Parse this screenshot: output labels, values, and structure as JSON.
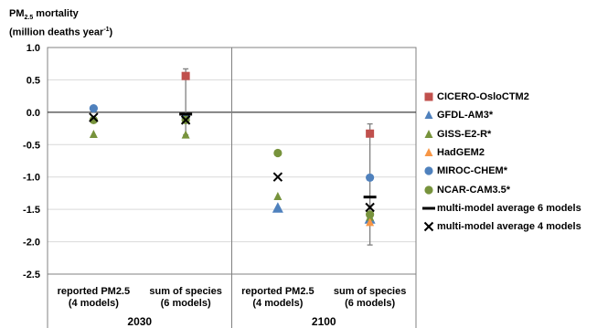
{
  "y_title": {
    "line1_main": "PM",
    "line1_sub": "2.5",
    "line1_rest": " mortality",
    "line2_main": "(million deaths year",
    "line2_sup": "-1",
    "line2_end": ")"
  },
  "chart_data": {
    "type": "scatter",
    "ylim": [
      -2.5,
      1.0
    ],
    "yticks": [
      1.0,
      0.5,
      0.0,
      -0.5,
      -1.0,
      -1.5,
      -2.0,
      -2.5
    ],
    "ytick_labels": [
      "1.0",
      "0.5",
      "0.0",
      "-0.5",
      "-1.0",
      "-1.5",
      "-2.0",
      "-2.5"
    ],
    "groups": [
      {
        "year": "2030",
        "categories": [
          {
            "line1": "reported PM2.5",
            "line2": "(4 models)"
          },
          {
            "line1": "sum of species",
            "line2": "(6 models)"
          }
        ]
      },
      {
        "year": "2100",
        "categories": [
          {
            "line1": "reported PM2.5",
            "line2": "(4 models)"
          },
          {
            "line1": "sum of species",
            "line2": "(6 models)"
          }
        ]
      }
    ],
    "series": [
      {
        "name": "CICERO-OsloCTM2",
        "marker": "square",
        "color": "#c0504d",
        "values": [
          null,
          0.56,
          null,
          -0.33
        ]
      },
      {
        "name": "GFDL-AM3*",
        "marker": "triangle-large",
        "color": "#4f81bd",
        "values": [
          null,
          null,
          -1.48,
          -1.65
        ]
      },
      {
        "name": "GISS-E2-R*",
        "marker": "triangle",
        "color": "#77933c",
        "values": [
          -0.34,
          -0.35,
          -1.3,
          -1.62
        ]
      },
      {
        "name": "HadGEM2",
        "marker": "triangle",
        "color": "#f79646",
        "values": [
          null,
          null,
          null,
          -1.7
        ]
      },
      {
        "name": "MIROC-CHEM*",
        "marker": "circle",
        "color": "#4f81bd",
        "values": [
          0.06,
          -0.08,
          null,
          -1.01
        ]
      },
      {
        "name": "NCAR-CAM3.5*",
        "marker": "circle",
        "color": "#77933c",
        "values": [
          -0.12,
          -0.12,
          -0.63,
          -1.58
        ]
      },
      {
        "name": "multi-model average 6 models",
        "marker": "dash",
        "color": "#000000",
        "values": [
          null,
          -0.03,
          null,
          -1.31
        ],
        "err_high": [
          null,
          0.67,
          null,
          -0.18
        ],
        "err_low": [
          null,
          -0.35,
          null,
          -2.05
        ]
      },
      {
        "name": "multi-model average 4 models",
        "marker": "x",
        "color": "#000000",
        "values": [
          -0.08,
          -0.12,
          -1.0,
          -1.47
        ]
      }
    ]
  },
  "colors": {
    "grid": "#d9d9d9",
    "axis": "#808080",
    "whisker": "#7f7f7f"
  }
}
